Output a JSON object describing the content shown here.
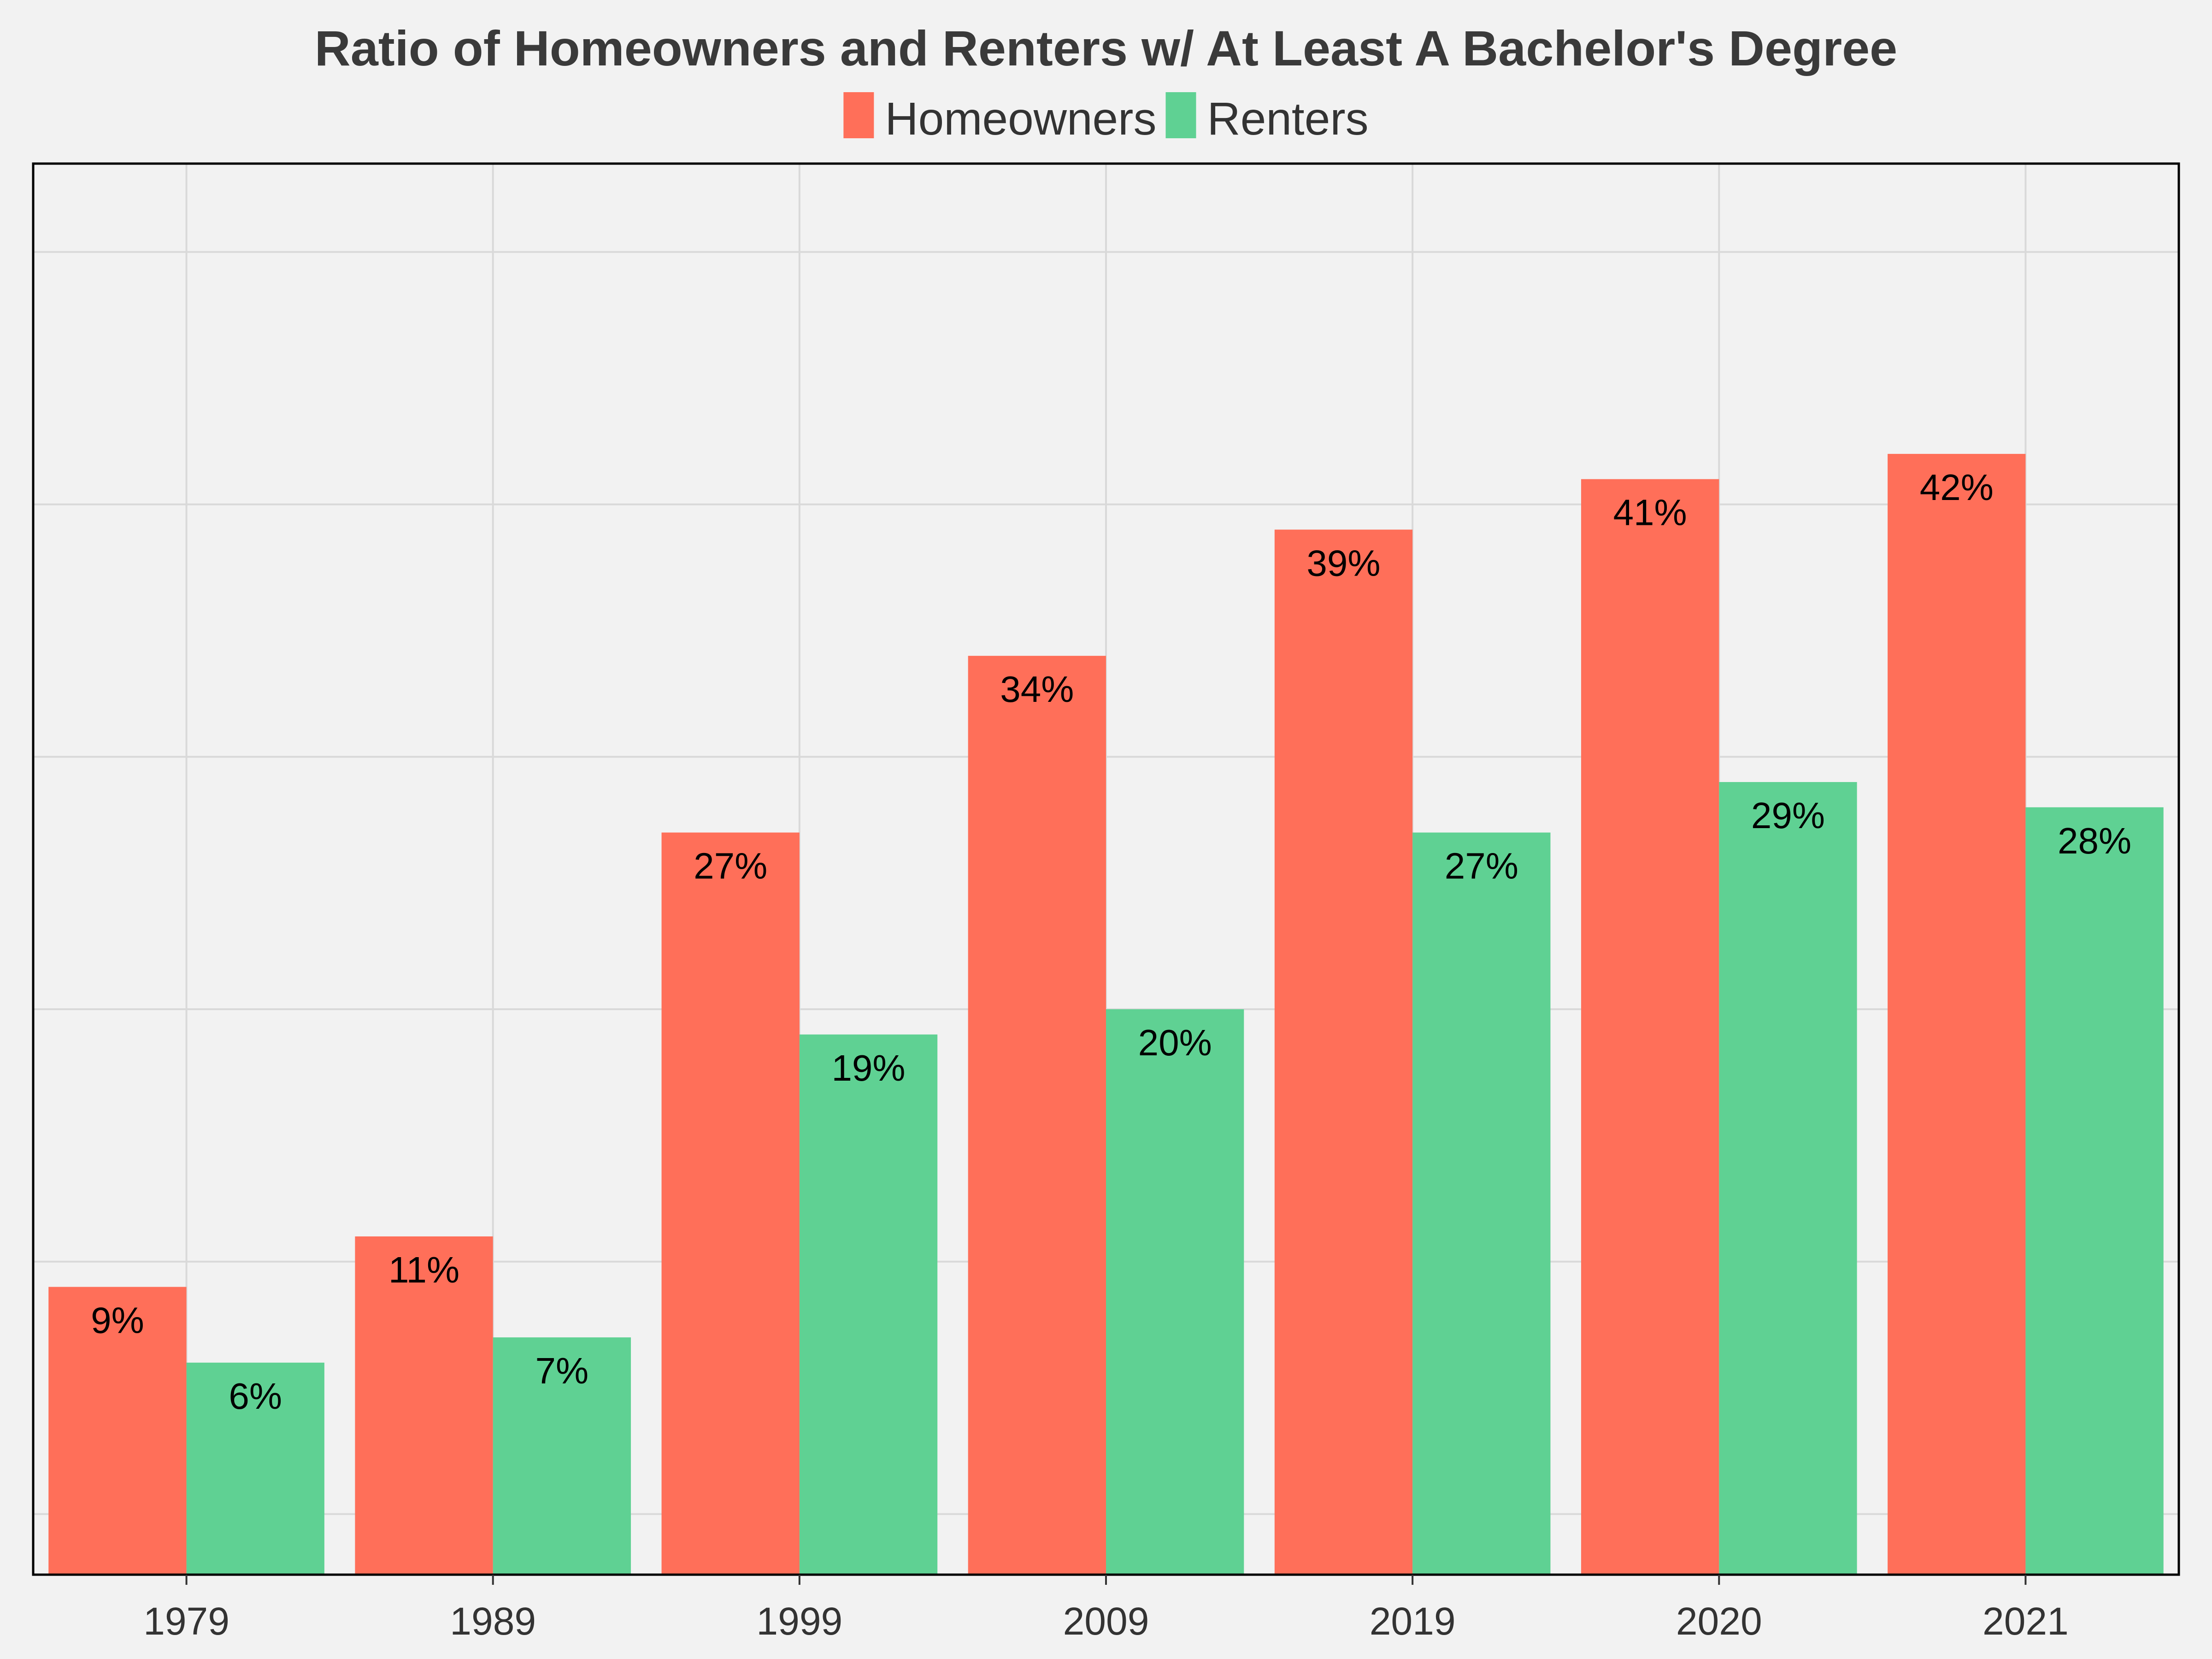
{
  "chart_data": {
    "type": "bar",
    "title": "Ratio of Homeowners and Renters w/ At Least A Bachelor's Degree",
    "xlabel": "",
    "ylabel": "",
    "categories": [
      "1979",
      "1989",
      "1999",
      "2009",
      "2019",
      "2020",
      "2021"
    ],
    "series": [
      {
        "name": "Homeowners",
        "color": "#ff6f59",
        "values": [
          9,
          11,
          27,
          34,
          39,
          41,
          42
        ],
        "labels": [
          "9%",
          "11%",
          "27%",
          "34%",
          "39%",
          "41%",
          "42%"
        ]
      },
      {
        "name": "Renters",
        "color": "#5fd193",
        "values": [
          6,
          7,
          19,
          20,
          27,
          29,
          28
        ],
        "labels": [
          "6%",
          "7%",
          "19%",
          "20%",
          "27%",
          "29%",
          "28%"
        ]
      }
    ],
    "ylim": [
      -2.4,
      53.5
    ],
    "ygrid": [
      0,
      10,
      20,
      30,
      40,
      50
    ],
    "grid": true,
    "legend_position": "top"
  }
}
